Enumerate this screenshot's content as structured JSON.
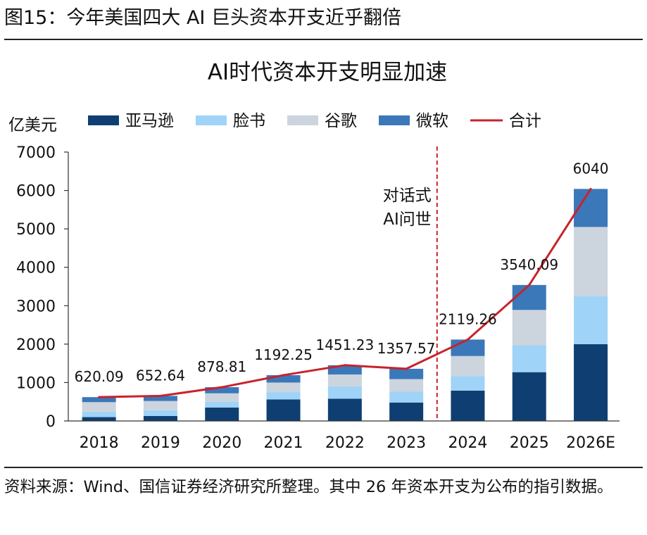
{
  "figure": {
    "caption": "图15：今年美国四大 AI 巨头资本开支近乎翻倍",
    "source_note": "资料来源：Wind、国信证券经济研究所整理。其中 26 年资本开支为公布的指引数据。"
  },
  "chart_data": {
    "type": "bar",
    "stacked": true,
    "title": "AI时代资本开支明显加速",
    "unit_label": "亿美元",
    "categories": [
      "2018",
      "2019",
      "2020",
      "2021",
      "2022",
      "2023",
      "2024",
      "2025",
      "2026E"
    ],
    "ylim": [
      0,
      7000
    ],
    "yticks": [
      0,
      1000,
      2000,
      3000,
      4000,
      5000,
      6000,
      7000
    ],
    "legend_position": "top",
    "grid": false,
    "series": [
      {
        "name": "亚马逊",
        "color": "#0f3f72",
        "values": [
          100,
          130,
          350,
          560,
          580,
          480,
          790,
          1270,
          2000
        ]
      },
      {
        "name": "脸书",
        "color": "#9fd3f7",
        "values": [
          140,
          150,
          150,
          190,
          320,
          280,
          380,
          700,
          1250
        ]
      },
      {
        "name": "谷歌",
        "color": "#ccd4de",
        "values": [
          250,
          240,
          220,
          250,
          310,
          330,
          520,
          920,
          1800
        ]
      },
      {
        "name": "微软",
        "color": "#3a78b9",
        "values": [
          130,
          133,
          159,
          192,
          241,
          268,
          429,
          650,
          990
        ]
      }
    ],
    "total": {
      "name": "合计",
      "color": "#c8232c",
      "values": [
        620.09,
        652.64,
        878.81,
        1192.25,
        1451.23,
        1357.57,
        2119.26,
        3540.09,
        6040
      ],
      "labels": [
        "620.09",
        "652.64",
        "878.81",
        "1192.25",
        "1451.23",
        "1357.57",
        "2119.26",
        "3540.09",
        "6040"
      ]
    },
    "annotation": {
      "text_lines": [
        "对话式",
        "AI问世"
      ],
      "between": [
        "2023",
        "2024"
      ],
      "line_style": "dashed",
      "color": "#c8232c"
    }
  }
}
